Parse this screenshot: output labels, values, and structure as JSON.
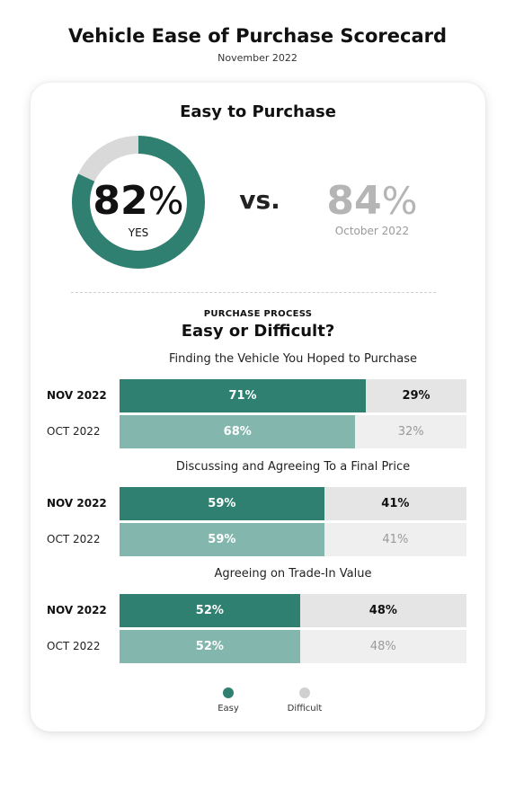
{
  "header": {
    "title": "Vehicle Ease of Purchase Scorecard",
    "subtitle": "November 2022"
  },
  "summary": {
    "title": "Easy to Purchase",
    "current_value": 82,
    "current_number": "82",
    "current_percent_sign": "%",
    "current_label": "YES",
    "vs_label": "vs.",
    "previous_number": "84",
    "previous_percent_sign": "%",
    "previous_label": "October 2022"
  },
  "process": {
    "kicker": "PURCHASE PROCESS",
    "title": "Easy or Difficult?"
  },
  "legend": {
    "easy": "Easy",
    "difficult": "Difficult"
  },
  "colors": {
    "easy_current": "#2f8070",
    "easy_prior": "#83b6ac",
    "difficult_current": "#e5e5e5",
    "difficult_prior": "#efefef",
    "donut_track": "#d9d9d9",
    "legend_difficult": "#d0d0d0"
  },
  "chart_data": [
    {
      "type": "pie",
      "title": "Easy to Purchase",
      "categories": [
        "Easy",
        "Difficult"
      ],
      "values": [
        82,
        18
      ],
      "center_label": "82%",
      "comparison": {
        "label": "October 2022",
        "value": 84
      }
    },
    {
      "type": "bar",
      "stacked": true,
      "orientation": "horizontal",
      "title": "Easy or Difficult?",
      "groups": [
        {
          "title": "Finding the Vehicle You Hoped to Purchase",
          "rows": [
            {
              "label": "NOV 2022",
              "easy": 71,
              "difficult": 29,
              "easy_text": "71%",
              "difficult_text": "29%",
              "current": true
            },
            {
              "label": "OCT 2022",
              "easy": 68,
              "difficult": 32,
              "easy_text": "68%",
              "difficult_text": "32%",
              "current": false
            }
          ]
        },
        {
          "title": "Discussing and Agreeing To a Final Price",
          "rows": [
            {
              "label": "NOV 2022",
              "easy": 59,
              "difficult": 41,
              "easy_text": "59%",
              "difficult_text": "41%",
              "current": true
            },
            {
              "label": "OCT 2022",
              "easy": 59,
              "difficult": 41,
              "easy_text": "59%",
              "difficult_text": "41%",
              "current": false
            }
          ]
        },
        {
          "title": "Agreeing on Trade-In Value",
          "rows": [
            {
              "label": "NOV 2022",
              "easy": 52,
              "difficult": 48,
              "easy_text": "52%",
              "difficult_text": "48%",
              "current": true
            },
            {
              "label": "OCT 2022",
              "easy": 52,
              "difficult": 48,
              "easy_text": "52%",
              "difficult_text": "48%",
              "current": false
            }
          ]
        }
      ],
      "series": [
        {
          "name": "Easy"
        },
        {
          "name": "Difficult"
        }
      ],
      "legend": "bottom"
    }
  ]
}
